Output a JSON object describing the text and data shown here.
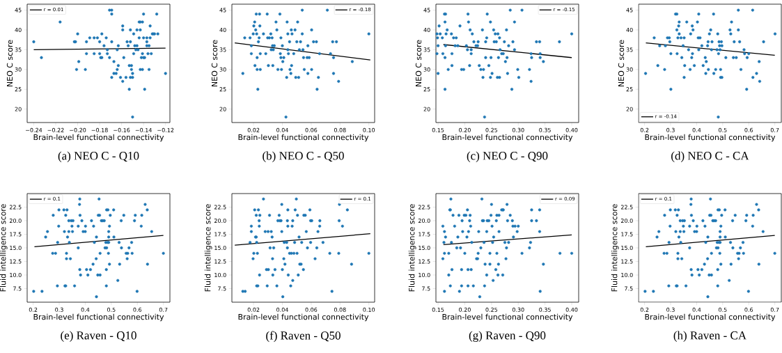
{
  "chart_data": [
    {
      "type": "scatter",
      "title": "(a) NEO C - Q10",
      "xlabel": "Brain-level functional connectivity",
      "ylabel": "NEO C score",
      "xlim": [
        -0.246,
        -0.116
      ],
      "ylim": [
        16.6,
        46.5
      ],
      "xticks": [
        {
          "value": -0.24,
          "label": "−0.24"
        },
        {
          "value": -0.22,
          "label": "−0.22"
        },
        {
          "value": -0.2,
          "label": "−0.20"
        },
        {
          "value": -0.18,
          "label": "−0.18"
        },
        {
          "value": -0.16,
          "label": "−0.16"
        },
        {
          "value": -0.14,
          "label": "−0.14"
        },
        {
          "value": -0.12,
          "label": "−0.12"
        }
      ],
      "yticks": [
        20,
        25,
        30,
        35,
        40,
        45
      ],
      "legend": "top left",
      "series": [
        {
          "color": "#1f77b4",
          "marker": "circle",
          "x": [
            -0.24,
            -0.233,
            -0.216,
            -0.203,
            -0.202,
            -0.2,
            -0.201,
            -0.199,
            -0.193,
            -0.192,
            -0.192,
            -0.189,
            -0.185,
            -0.185,
            -0.182,
            -0.18,
            -0.18,
            -0.179,
            -0.178,
            -0.178,
            -0.176,
            -0.174,
            -0.173,
            -0.173,
            -0.171,
            -0.171,
            -0.169,
            -0.169,
            -0.169,
            -0.167,
            -0.169,
            -0.167,
            -0.165,
            -0.164,
            -0.164,
            -0.163,
            -0.163,
            -0.161,
            -0.159,
            -0.159,
            -0.159,
            -0.158,
            -0.156,
            -0.155,
            -0.154,
            -0.153,
            -0.153,
            -0.152,
            -0.152,
            -0.152,
            -0.151,
            -0.151,
            -0.15,
            -0.15,
            -0.15,
            -0.149,
            -0.149,
            -0.148,
            -0.147,
            -0.146,
            -0.146,
            -0.145,
            -0.144,
            -0.144,
            -0.143,
            -0.143,
            -0.143,
            -0.142,
            -0.141,
            -0.141,
            -0.141,
            -0.14,
            -0.14,
            -0.14,
            -0.139,
            -0.139,
            -0.137,
            -0.137,
            -0.137,
            -0.136,
            -0.135,
            -0.135,
            -0.134,
            -0.134,
            -0.133,
            -0.132,
            -0.131,
            -0.13,
            -0.128,
            -0.127,
            -0.12
          ],
          "values": [
            37,
            33,
            42,
            37,
            37,
            39,
            30,
            32,
            30,
            37,
            34,
            38,
            38,
            34,
            38,
            37,
            34,
            33,
            33,
            39,
            36,
            38,
            35,
            34,
            33,
            45,
            45,
            44,
            37,
            32,
            28,
            29,
            29,
            35,
            30,
            36,
            31,
            28,
            41,
            40,
            27,
            33,
            28,
            37,
            36,
            31,
            25,
            40,
            37,
            28,
            30,
            31,
            29,
            28,
            18,
            39,
            34,
            36,
            35,
            36,
            40,
            35,
            42,
            38,
            40,
            42,
            30,
            33,
            30,
            42,
            34,
            44,
            33,
            38,
            25,
            33,
            37,
            38,
            36,
            34,
            30,
            36,
            41,
            38,
            34,
            39,
            39,
            39,
            44,
            39,
            29
          ]
        },
        {
          "type": "line",
          "name": "r = 0.01",
          "color": "#000000",
          "marker": "none",
          "x": [
            -0.24,
            -0.12
          ],
          "values": [
            35.0,
            35.4
          ]
        }
      ]
    },
    {
      "type": "scatter",
      "title": "(b) NEO C - Q50",
      "xlabel": "Brain-level functional connectivity",
      "ylabel": "NEO C score",
      "xlim": [
        0.005,
        0.104
      ],
      "ylim": [
        16.6,
        46.5
      ],
      "xticks": [
        0.02,
        0.04,
        0.06,
        0.08,
        {
          "value": 0.1,
          "label": "0.10"
        }
      ],
      "yticks": [
        20,
        25,
        30,
        35,
        40,
        45
      ],
      "legend": "top right",
      "series": [
        {
          "color": "#1f77b4",
          "marker": "circle",
          "x": [
            0.0126,
            0.0139,
            0.0176,
            0.0185,
            0.0185,
            0.0198,
            0.0202,
            0.0208,
            0.021,
            0.0215,
            0.0219,
            0.0222,
            0.0225,
            0.0225,
            0.023,
            0.0234,
            0.0239,
            0.0242,
            0.0244,
            0.0247,
            0.0247,
            0.0269,
            0.0285,
            0.0295,
            0.0298,
            0.0303,
            0.031,
            0.032,
            0.0323,
            0.0329,
            0.0332,
            0.0334,
            0.0337,
            0.0344,
            0.0356,
            0.0362,
            0.0369,
            0.0383,
            0.0386,
            0.039,
            0.039,
            0.0394,
            0.04,
            0.0403,
            0.041,
            0.0425,
            0.043,
            0.0433,
            0.0438,
            0.0438,
            0.0442,
            0.045,
            0.0453,
            0.0459,
            0.0462,
            0.0464,
            0.0467,
            0.0479,
            0.0488,
            0.0493,
            0.05,
            0.0506,
            0.0513,
            0.0518,
            0.0526,
            0.0538,
            0.0538,
            0.0543,
            0.0547,
            0.0552,
            0.0572,
            0.0577,
            0.0577,
            0.0586,
            0.0603,
            0.0603,
            0.0616,
            0.0636,
            0.0641,
            0.065,
            0.0658,
            0.0712,
            0.0734,
            0.0749,
            0.0755,
            0.0755,
            0.0775,
            0.079,
            0.0885,
            0.1
          ],
          "values": [
            29,
            38,
            38,
            36,
            34,
            39,
            41,
            42,
            31,
            40,
            44,
            39,
            33,
            30,
            25,
            37,
            38,
            44,
            41,
            34,
            30,
            39,
            34,
            44,
            38,
            31,
            38,
            39,
            35,
            38,
            36,
            31,
            35,
            36,
            42,
            40,
            30,
            44,
            34,
            33,
            38,
            30,
            36,
            32,
            33,
            18,
            28,
            42,
            39,
            35,
            34,
            37,
            30,
            29,
            40,
            31,
            39,
            34,
            40,
            28,
            37,
            42,
            28,
            35,
            37,
            39,
            45,
            35,
            33,
            30,
            33,
            36,
            29,
            33,
            40,
            30,
            37,
            37,
            25,
            28,
            34,
            45,
            34,
            37,
            33,
            29,
            37,
            27,
            32,
            39
          ]
        },
        {
          "type": "line",
          "name": "r = -0.18",
          "color": "#000000",
          "marker": "none",
          "x": [
            0.007,
            0.101
          ],
          "values": [
            36.7,
            32.4
          ]
        }
      ]
    },
    {
      "type": "scatter",
      "title": "(c) NEO C - Q90",
      "xlabel": "Brain-level functional connectivity",
      "ylabel": "NEO C score",
      "xlim": [
        0.146,
        0.413
      ],
      "ylim": [
        16.6,
        46.5
      ],
      "xticks": [
        0.15,
        {
          "value": 0.2,
          "label": "0.20"
        },
        0.25,
        {
          "value": 0.3,
          "label": "0.30"
        },
        0.35,
        {
          "value": 0.4,
          "label": "0.40"
        }
      ],
      "yticks": [
        20,
        25,
        30,
        35,
        40,
        45
      ],
      "legend": "top right",
      "series": [
        {
          "color": "#1f77b4",
          "marker": "circle",
          "x": [
            0.148,
            0.148,
            0.149,
            0.15,
            0.15,
            0.152,
            0.154,
            0.158,
            0.159,
            0.162,
            0.163,
            0.164,
            0.164,
            0.163,
            0.163,
            0.165,
            0.167,
            0.169,
            0.175,
            0.176,
            0.176,
            0.179,
            0.182,
            0.184,
            0.187,
            0.191,
            0.194,
            0.198,
            0.203,
            0.205,
            0.206,
            0.207,
            0.209,
            0.21,
            0.212,
            0.212,
            0.214,
            0.217,
            0.221,
            0.224,
            0.225,
            0.227,
            0.23,
            0.233,
            0.234,
            0.235,
            0.237,
            0.239,
            0.239,
            0.241,
            0.242,
            0.245,
            0.248,
            0.248,
            0.249,
            0.251,
            0.254,
            0.255,
            0.257,
            0.259,
            0.261,
            0.262,
            0.263,
            0.265,
            0.265,
            0.266,
            0.269,
            0.272,
            0.274,
            0.276,
            0.278,
            0.279,
            0.28,
            0.282,
            0.285,
            0.288,
            0.29,
            0.293,
            0.293,
            0.299,
            0.301,
            0.307,
            0.321,
            0.324,
            0.324,
            0.325,
            0.334,
            0.34,
            0.341,
            0.341,
            0.347,
            0.377,
            0.4
          ],
          "values": [
            34,
            39,
            38,
            36,
            29,
            41,
            39,
            38,
            34,
            44,
            42,
            36,
            44,
            33,
            25,
            39,
            40,
            30,
            39,
            34,
            31,
            38,
            36,
            38,
            36,
            41,
            30,
            30,
            36,
            35,
            44,
            42,
            31,
            40,
            34,
            35,
            39,
            37,
            36,
            36,
            37,
            31,
            30,
            40,
            28,
            30,
            18,
            37,
            33,
            38,
            44,
            31,
            42,
            28,
            33,
            29,
            40,
            37,
            39,
            37,
            28,
            39,
            33,
            38,
            28,
            35,
            34,
            34,
            37,
            32,
            40,
            33,
            29,
            36,
            45,
            25,
            37,
            35,
            42,
            30,
            28,
            45,
            30,
            34,
            27,
            33,
            37,
            37,
            34,
            33,
            32,
            37,
            39
          ]
        },
        {
          "type": "line",
          "name": "r = -0.15",
          "color": "#000000",
          "marker": "none",
          "x": [
            0.16,
            0.4
          ],
          "values": [
            36.3,
            33.0
          ]
        }
      ]
    },
    {
      "type": "scatter",
      "title": "(d) NEO C - CA",
      "xlabel": "Brain-level functional connectivity",
      "ylabel": "NEO C score",
      "xlim": [
        0.177,
        0.725
      ],
      "ylim": [
        16.6,
        46.5
      ],
      "xticks": [
        0.2,
        0.3,
        0.4,
        0.5,
        0.6,
        0.7
      ],
      "yticks": [
        20,
        25,
        30,
        35,
        40,
        45
      ],
      "legend": "bottom left",
      "series": [
        {
          "color": "#1f77b4",
          "marker": "circle",
          "x": [
            0.204,
            0.237,
            0.251,
            0.258,
            0.277,
            0.28,
            0.288,
            0.297,
            0.295,
            0.301,
            0.301,
            0.319,
            0.324,
            0.324,
            0.325,
            0.328,
            0.331,
            0.333,
            0.333,
            0.34,
            0.343,
            0.348,
            0.352,
            0.352,
            0.354,
            0.362,
            0.369,
            0.375,
            0.377,
            0.381,
            0.383,
            0.384,
            0.386,
            0.391,
            0.403,
            0.406,
            0.408,
            0.408,
            0.413,
            0.42,
            0.425,
            0.433,
            0.435,
            0.437,
            0.442,
            0.444,
            0.445,
            0.449,
            0.454,
            0.457,
            0.459,
            0.465,
            0.466,
            0.473,
            0.478,
            0.481,
            0.483,
            0.484,
            0.486,
            0.488,
            0.49,
            0.492,
            0.492,
            0.495,
            0.497,
            0.497,
            0.512,
            0.528,
            0.531,
            0.534,
            0.541,
            0.544,
            0.552,
            0.56,
            0.56,
            0.565,
            0.57,
            0.582,
            0.584,
            0.594,
            0.592,
            0.6,
            0.615,
            0.616,
            0.63,
            0.64,
            0.642,
            0.657,
            0.701
          ],
          "values": [
            29,
            38,
            31,
            36,
            30,
            36,
            38,
            37,
            38,
            34,
            25,
            44,
            44,
            40,
            34,
            38,
            41,
            42,
            39,
            38,
            33,
            36,
            38,
            28,
            31,
            42,
            35,
            30,
            39,
            33,
            41,
            34,
            40,
            31,
            42,
            38,
            44,
            35,
            38,
            36,
            31,
            33,
            29,
            32,
            36,
            37,
            30,
            39,
            40,
            35,
            37,
            44,
            29,
            30,
            35,
            39,
            18,
            34,
            37,
            36,
            35,
            30,
            28,
            37,
            28,
            36,
            33,
            40,
            39,
            42,
            33,
            37,
            33,
            45,
            40,
            37,
            30,
            35,
            34,
            33,
            25,
            34,
            45,
            28,
            29,
            32,
            27,
            37,
            39
          ]
        },
        {
          "type": "line",
          "name": "r = -0.14",
          "color": "#000000",
          "marker": "none",
          "x": [
            0.205,
            0.7
          ],
          "values": [
            36.7,
            33.6
          ]
        }
      ]
    },
    {
      "type": "scatter",
      "title": "(e) Raven - Q10",
      "xlabel": "Brain-level functional connectivity",
      "ylabel": "Fluid intelligence score",
      "xlim": [
        0.177,
        0.725
      ],
      "ylim": [
        5,
        25
      ],
      "xticks": [
        0.2,
        0.3,
        0.4,
        0.5,
        0.6,
        0.7
      ],
      "yticks": [
        7.5,
        {
          "value": 10,
          "label": "10.0"
        },
        12.5,
        {
          "value": 15,
          "label": "15.0"
        },
        17.5,
        {
          "value": 20,
          "label": "20.0"
        },
        22.5
      ],
      "legend": "top left",
      "series": [
        {
          "color": "#1f77b4",
          "marker": "circle",
          "x": [
            0.202,
            0.234,
            0.248,
            0.255,
            0.275,
            0.277,
            0.286,
            0.293,
            0.294,
            0.298,
            0.299,
            0.318,
            0.32,
            0.322,
            0.325,
            0.325,
            0.328,
            0.328,
            0.33,
            0.332,
            0.337,
            0.337,
            0.339,
            0.343,
            0.346,
            0.349,
            0.351,
            0.353,
            0.359,
            0.373,
            0.373,
            0.379,
            0.378,
            0.38,
            0.379,
            0.382,
            0.387,
            0.392,
            0.4,
            0.401,
            0.405,
            0.41,
            0.42,
            0.424,
            0.43,
            0.432,
            0.435,
            0.442,
            0.443,
            0.443,
            0.448,
            0.45,
            0.453,
            0.455,
            0.457,
            0.457,
            0.462,
            0.467,
            0.473,
            0.476,
            0.479,
            0.481,
            0.481,
            0.482,
            0.482,
            0.486,
            0.487,
            0.489,
            0.49,
            0.49,
            0.49,
            0.493,
            0.493,
            0.496,
            0.509,
            0.51,
            0.525,
            0.53,
            0.532,
            0.538,
            0.539,
            0.548,
            0.557,
            0.561,
            0.563,
            0.568,
            0.578,
            0.58,
            0.589,
            0.592,
            0.599,
            0.615,
            0.617,
            0.63,
            0.638,
            0.639,
            0.655,
            0.7
          ],
          "values": [
            7,
            7,
            17,
            18,
            14,
            21,
            14,
            8,
            16,
            19,
            22,
            22,
            18,
            8,
            8,
            21,
            14,
            13,
            22,
            17,
            20,
            18,
            16,
            13,
            20,
            19,
            18,
            20,
            8,
            19,
            15,
            24,
            23,
            21,
            11,
            10,
            20,
            18,
            18,
            19,
            11,
            10,
            11,
            20,
            12,
            19,
            16,
            13,
            17,
            6,
            10,
            21,
            24,
            21,
            10,
            14,
            20,
            20,
            20,
            15,
            16,
            8,
            11,
            15,
            22,
            16,
            22,
            14,
            18,
            17,
            16,
            19,
            12,
            21,
            22,
            17,
            9,
            16,
            12,
            20,
            15,
            21,
            14,
            13,
            14,
            15,
            16,
            14,
            20,
            21,
            7,
            19,
            21,
            23,
            22,
            12,
            18,
            14
          ]
        },
        {
          "type": "line",
          "name": "r = 0.1",
          "color": "#000000",
          "marker": "none",
          "x": [
            0.205,
            0.7
          ],
          "values": [
            15.2,
            17.3
          ]
        }
      ]
    },
    {
      "type": "scatter",
      "title": "(f) Raven - Q50",
      "xlabel": "Brain-level functional connectivity",
      "ylabel": "Fluid intelligence score",
      "xlim": [
        0.005,
        0.104
      ],
      "ylim": [
        5,
        25
      ],
      "xticks": [
        0.02,
        0.04,
        0.06,
        0.08,
        {
          "value": 0.1,
          "label": "0.10"
        }
      ],
      "yticks": [
        7.5,
        {
          "value": 10,
          "label": "10.0"
        },
        12.5,
        {
          "value": 15,
          "label": "15.0"
        },
        17.5,
        {
          "value": 20,
          "label": "20.0"
        },
        22.5
      ],
      "legend": "top right",
      "series": [
        {
          "color": "#1f77b4",
          "marker": "circle",
          "x": [
            0.0126,
            0.0142,
            0.0176,
            0.0185,
            0.0185,
            0.0197,
            0.0202,
            0.0208,
            0.0214,
            0.0219,
            0.0219,
            0.0222,
            0.0222,
            0.0227,
            0.023,
            0.0234,
            0.0239,
            0.024,
            0.0242,
            0.0244,
            0.0269,
            0.0281,
            0.029,
            0.0295,
            0.0301,
            0.0303,
            0.0311,
            0.0315,
            0.0323,
            0.0329,
            0.0332,
            0.0334,
            0.034,
            0.0349,
            0.0362,
            0.0369,
            0.0378,
            0.0383,
            0.0391,
            0.0396,
            0.0396,
            0.04,
            0.0403,
            0.041,
            0.0413,
            0.0418,
            0.043,
            0.0435,
            0.0435,
            0.0438,
            0.0438,
            0.0441,
            0.045,
            0.0458,
            0.0463,
            0.0468,
            0.0472,
            0.0472,
            0.048,
            0.0485,
            0.0489,
            0.0497,
            0.0502,
            0.0505,
            0.051,
            0.0516,
            0.0521,
            0.053,
            0.0534,
            0.0546,
            0.0549,
            0.0559,
            0.0566,
            0.0574,
            0.0591,
            0.0596,
            0.0596,
            0.0604,
            0.0627,
            0.0639,
            0.0647,
            0.0659,
            0.066,
            0.0682,
            0.0729,
            0.0744,
            0.0791,
            0.0794,
            0.0796,
            0.0817,
            0.0851,
            0.088,
            0.1
          ],
          "values": [
            7,
            7,
            16,
            19,
            18,
            13,
            14,
            22,
            17,
            21,
            17,
            16,
            8,
            14,
            8,
            22,
            20,
            19,
            10,
            21,
            24,
            18,
            11,
            8,
            18,
            11,
            21,
            15,
            18,
            17,
            13,
            10,
            15,
            11,
            8,
            20,
            21,
            20,
            20,
            18,
            23,
            11,
            6,
            13,
            16,
            12,
            16,
            20,
            15,
            22,
            19,
            10,
            14,
            8,
            14,
            19,
            20,
            9,
            14,
            16,
            22,
            24,
            14,
            21,
            10,
            17,
            12,
            12,
            16,
            11,
            21,
            21,
            18,
            15,
            22,
            20,
            16,
            20,
            13,
            15,
            18,
            19,
            20,
            16,
            14,
            7,
            14,
            20,
            23,
            19,
            22,
            12,
            14
          ]
        },
        {
          "type": "line",
          "name": "r = 0.1",
          "color": "#000000",
          "marker": "none",
          "x": [
            0.007,
            0.101
          ],
          "values": [
            15.5,
            17.6
          ]
        }
      ]
    },
    {
      "type": "scatter",
      "title": "(g) Raven - Q90",
      "xlabel": "Brain-level functional connectivity",
      "ylabel": "Fluid intelligence score",
      "xlim": [
        0.146,
        0.413
      ],
      "ylim": [
        5,
        25
      ],
      "xticks": [
        0.15,
        {
          "value": 0.2,
          "label": "0.20"
        },
        0.25,
        {
          "value": 0.3,
          "label": "0.30"
        },
        0.35,
        {
          "value": 0.4,
          "label": "0.40"
        }
      ],
      "yticks": [
        7.5,
        {
          "value": 10,
          "label": "10.0"
        },
        12.5,
        {
          "value": 15,
          "label": "15.0"
        },
        17.5,
        {
          "value": 20,
          "label": "20.0"
        },
        22.5
      ],
      "legend": "top right",
      "series": [
        {
          "color": "#1f77b4",
          "marker": "circle",
          "x": [
            0.159,
            0.159,
            0.161,
            0.162,
            0.162,
            0.162,
            0.164,
            0.17,
            0.17,
            0.172,
            0.173,
            0.174,
            0.175,
            0.176,
            0.173,
            0.178,
            0.181,
            0.185,
            0.187,
            0.189,
            0.19,
            0.192,
            0.194,
            0.194,
            0.195,
            0.196,
            0.199,
            0.2,
            0.202,
            0.204,
            0.205,
            0.206,
            0.206,
            0.207,
            0.209,
            0.21,
            0.211,
            0.212,
            0.213,
            0.216,
            0.222,
            0.224,
            0.225,
            0.226,
            0.228,
            0.23,
            0.232,
            0.233,
            0.235,
            0.236,
            0.237,
            0.238,
            0.241,
            0.241,
            0.242,
            0.245,
            0.247,
            0.247,
            0.249,
            0.25,
            0.251,
            0.252,
            0.253,
            0.254,
            0.258,
            0.259,
            0.26,
            0.26,
            0.262,
            0.263,
            0.264,
            0.264,
            0.269,
            0.271,
            0.271,
            0.272,
            0.275,
            0.277,
            0.278,
            0.279,
            0.28,
            0.282,
            0.285,
            0.289,
            0.29,
            0.291,
            0.294,
            0.298,
            0.3,
            0.307,
            0.321,
            0.323,
            0.325,
            0.325,
            0.334,
            0.34,
            0.34,
            0.341,
            0.347,
            0.378,
            0.4
          ],
          "values": [
            19,
            13,
            16,
            18,
            14,
            7,
            17,
            14,
            10,
            22,
            22,
            24,
            16,
            11,
            8,
            21,
            19,
            15,
            17,
            21,
            7,
            15,
            8,
            11,
            20,
            18,
            21,
            14,
            21,
            17,
            22,
            8,
            11,
            18,
            20,
            21,
            19,
            11,
            16,
            8,
            13,
            13,
            14,
            18,
            6,
            15,
            24,
            20,
            20,
            16,
            8,
            12,
            10,
            18,
            20,
            20,
            14,
            12,
            21,
            23,
            19,
            16,
            9,
            17,
            11,
            20,
            14,
            21,
            10,
            12,
            21,
            18,
            22,
            22,
            10,
            22,
            16,
            13,
            15,
            23,
            20,
            16,
            21,
            20,
            19,
            17,
            19,
            18,
            19,
            14,
            15,
            16,
            22,
            20,
            20,
            22,
            18,
            7,
            12,
            14,
            14
          ]
        },
        {
          "type": "line",
          "name": "r = 0.09",
          "color": "#000000",
          "marker": "none",
          "x": [
            0.16,
            0.4
          ],
          "values": [
            15.6,
            17.4
          ]
        }
      ]
    },
    {
      "type": "scatter",
      "title": "(h) Raven - CA",
      "xlabel": "Brain-level functional connectivity",
      "ylabel": "Fluid intelligence score",
      "xlim": [
        0.177,
        0.725
      ],
      "ylim": [
        5,
        25
      ],
      "xticks": [
        0.2,
        0.3,
        0.4,
        0.5,
        0.6,
        0.7
      ],
      "yticks": [
        7.5,
        {
          "value": 10,
          "label": "10.0"
        },
        12.5,
        {
          "value": 15,
          "label": "15.0"
        },
        17.5,
        {
          "value": 20,
          "label": "20.0"
        },
        22.5
      ],
      "legend": "top left",
      "series": [
        {
          "color": "#1f77b4",
          "marker": "circle",
          "x": [
            0.202,
            0.234,
            0.248,
            0.255,
            0.275,
            0.277,
            0.286,
            0.293,
            0.294,
            0.298,
            0.299,
            0.318,
            0.32,
            0.322,
            0.325,
            0.325,
            0.328,
            0.328,
            0.33,
            0.332,
            0.337,
            0.337,
            0.339,
            0.343,
            0.346,
            0.349,
            0.351,
            0.353,
            0.359,
            0.373,
            0.373,
            0.379,
            0.378,
            0.38,
            0.379,
            0.382,
            0.387,
            0.392,
            0.4,
            0.401,
            0.405,
            0.41,
            0.42,
            0.424,
            0.43,
            0.432,
            0.435,
            0.442,
            0.443,
            0.443,
            0.448,
            0.45,
            0.453,
            0.455,
            0.457,
            0.457,
            0.462,
            0.467,
            0.473,
            0.476,
            0.479,
            0.481,
            0.481,
            0.482,
            0.482,
            0.486,
            0.487,
            0.489,
            0.49,
            0.49,
            0.49,
            0.493,
            0.493,
            0.496,
            0.509,
            0.51,
            0.525,
            0.53,
            0.532,
            0.538,
            0.539,
            0.548,
            0.557,
            0.561,
            0.563,
            0.568,
            0.578,
            0.58,
            0.589,
            0.592,
            0.599,
            0.615,
            0.617,
            0.63,
            0.638,
            0.639,
            0.655,
            0.7
          ],
          "values": [
            7,
            7,
            17,
            18,
            14,
            21,
            14,
            8,
            16,
            19,
            22,
            22,
            18,
            8,
            8,
            21,
            14,
            13,
            22,
            17,
            20,
            18,
            16,
            13,
            20,
            19,
            18,
            20,
            8,
            19,
            15,
            24,
            23,
            21,
            11,
            10,
            20,
            18,
            18,
            19,
            11,
            10,
            11,
            20,
            12,
            19,
            16,
            13,
            17,
            6,
            10,
            21,
            24,
            21,
            10,
            14,
            20,
            20,
            20,
            15,
            16,
            8,
            11,
            15,
            22,
            16,
            22,
            14,
            18,
            17,
            16,
            19,
            12,
            21,
            22,
            17,
            9,
            16,
            12,
            20,
            15,
            21,
            14,
            13,
            14,
            15,
            16,
            14,
            20,
            21,
            7,
            19,
            21,
            23,
            22,
            12,
            18,
            14
          ]
        },
        {
          "type": "line",
          "name": "r = 0.1",
          "color": "#000000",
          "marker": "none",
          "x": [
            0.205,
            0.7
          ],
          "values": [
            15.2,
            17.3
          ]
        }
      ]
    }
  ]
}
